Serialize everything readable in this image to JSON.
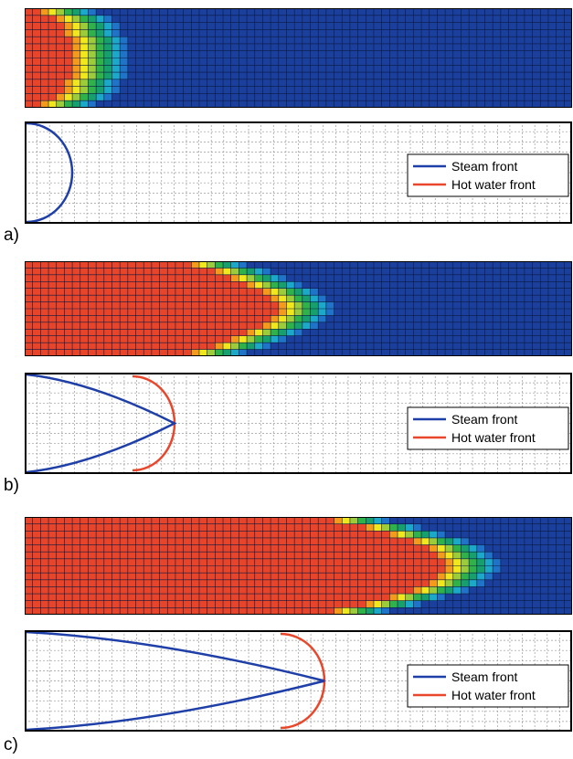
{
  "colors": {
    "steam": "#1f3fa8",
    "hot_water": "#e8472c",
    "scale": [
      "#1b3f9c",
      "#1f73c8",
      "#1ca8c8",
      "#16a06e",
      "#2fb24a",
      "#9ccc3a",
      "#f0e81c",
      "#f59b1c",
      "#e8442a"
    ]
  },
  "panels": [
    {
      "label": "a)",
      "legend": {
        "steam": "Steam front",
        "hot_water": "Hot water front"
      },
      "heat_depth": [
        5,
        7,
        8,
        8,
        9,
        9,
        9,
        9,
        9,
        9,
        8,
        8,
        7,
        5
      ],
      "hot_water_front": false
    },
    {
      "label": "b)",
      "legend": {
        "steam": "Steam front",
        "hot_water": "Hot water front"
      },
      "heat_depth": [
        24,
        27,
        29,
        31,
        33,
        34,
        35,
        35,
        34,
        33,
        31,
        29,
        27,
        24
      ],
      "hot_water_front": true
    },
    {
      "label": "c)",
      "legend": {
        "steam": "Steam front",
        "hot_water": "Hot water front"
      },
      "heat_depth": [
        42,
        46,
        49,
        52,
        54,
        55,
        56,
        56,
        55,
        54,
        52,
        49,
        46,
        42
      ],
      "hot_water_front": true
    }
  ]
}
